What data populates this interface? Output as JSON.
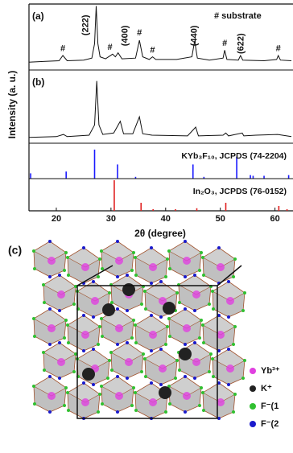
{
  "chart_data": {
    "type": "stacked-panels",
    "xlabel": "2θ (degree)",
    "ylabel": "Intensity (a. u.)",
    "xlim": [
      15,
      63
    ],
    "xticks": [
      20,
      30,
      40,
      50,
      60
    ],
    "panels": [
      {
        "type": "line",
        "label": "(a)",
        "color": "#111111",
        "ylim": [
          0,
          100
        ],
        "x": [
          15,
          18,
          20.5,
          21.2,
          22,
          25,
          26.5,
          27,
          27.3,
          27.6,
          28,
          29,
          30.3,
          30.8,
          31.3,
          32,
          34.5,
          35.2,
          35.8,
          37,
          37.6,
          38.2,
          42,
          44.8,
          45.3,
          45.8,
          48,
          50.5,
          50.8,
          51.2,
          53.3,
          53.7,
          54.1,
          58,
          60.3,
          60.6,
          61,
          63
        ],
        "values": [
          12,
          13,
          14,
          22,
          14,
          15,
          18,
          40,
          97,
          40,
          20,
          17,
          24,
          20,
          26,
          17,
          18,
          45,
          20,
          16,
          20,
          16,
          16,
          20,
          44,
          18,
          15,
          18,
          30,
          16,
          15,
          22,
          15,
          14,
          16,
          22,
          15,
          14
        ],
        "note": "# substrate",
        "peak_labels": [
          {
            "text": "(222)",
            "x": 25.4,
            "y": 68
          },
          {
            "text": "(400)",
            "x": 32.6,
            "y": 52
          },
          {
            "text": "(440)",
            "x": 45.3,
            "y": 52
          },
          {
            "text": "(622)",
            "x": 53.8,
            "y": 40
          }
        ],
        "markers": [
          {
            "text": "#",
            "x": 21.2,
            "y": 32
          },
          {
            "text": "#",
            "x": 29.8,
            "y": 34
          },
          {
            "text": "#",
            "x": 35.2,
            "y": 56
          },
          {
            "text": "#",
            "x": 37.6,
            "y": 30
          },
          {
            "text": "#",
            "x": 50.8,
            "y": 40
          },
          {
            "text": "#",
            "x": 60.6,
            "y": 32
          }
        ]
      },
      {
        "type": "line",
        "label": "(b)",
        "color": "#111111",
        "ylim": [
          0,
          100
        ],
        "x": [
          15,
          20,
          21.3,
          22,
          26,
          27,
          27.4,
          27.8,
          28.5,
          30.5,
          31.7,
          32.3,
          34,
          35.2,
          35.8,
          37.5,
          44,
          45.5,
          46,
          50.5,
          51,
          51.5,
          54,
          54.3,
          56.5,
          60.5,
          63
        ],
        "values": [
          8,
          9,
          12,
          9,
          11,
          25,
          85,
          25,
          12,
          14,
          30,
          13,
          13,
          36,
          13,
          11,
          10,
          22,
          10,
          11,
          14,
          10,
          14,
          10,
          11,
          12,
          9
        ]
      },
      {
        "type": "stick",
        "label": "KYb₃F₁₀, JCPDS (74-2204)",
        "color": "#1a1aff",
        "ylim": [
          0,
          100
        ],
        "x": [
          15.3,
          21.8,
          27,
          31.2,
          34.5,
          45,
          47,
          53,
          55.5,
          56,
          58,
          62.5
        ],
        "values": [
          15,
          20,
          82,
          40,
          5,
          40,
          5,
          62,
          10,
          8,
          8,
          10
        ]
      },
      {
        "type": "stick",
        "label": "In₂O₃, JCPDS (76-0152)",
        "color": "#e02020",
        "ylim": [
          0,
          100
        ],
        "x": [
          30.6,
          35.5,
          37.7,
          41.8,
          45.7,
          51,
          60.7,
          62.2
        ],
        "values": [
          95,
          25,
          5,
          5,
          8,
          25,
          15,
          5
        ]
      }
    ]
  },
  "structure": {
    "label": "(c)",
    "legend": [
      {
        "name": "Yb³⁺",
        "color": "#e040e0"
      },
      {
        "name": "K⁺",
        "color": "#222222"
      },
      {
        "name": "F⁻(1",
        "color": "#30c030"
      },
      {
        "name": "F⁻(2",
        "color": "#1a1acc"
      }
    ]
  }
}
